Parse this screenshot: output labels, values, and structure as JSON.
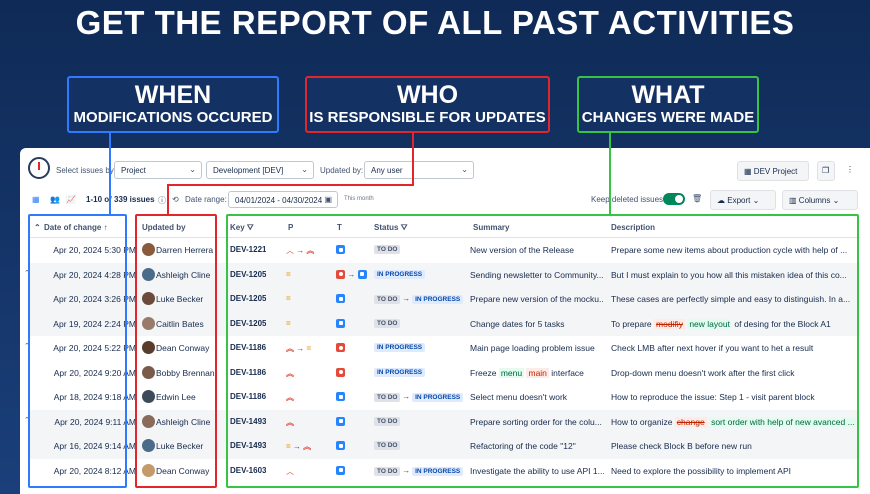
{
  "headline": "GET THE REPORT OF ALL PAST ACTIVITIES",
  "callouts": {
    "when": {
      "big": "WHEN",
      "small": "MODIFICATIONS OCCURED"
    },
    "who": {
      "big": "WHO",
      "small": "IS RESPONSIBLE FOR UPDATES"
    },
    "what": {
      "big": "WHAT",
      "small": "CHANGES WERE MADE"
    }
  },
  "toolbar": {
    "select_issues_label": "Select issues by:",
    "select_issues_value": "Project",
    "project_value": "Development [DEV]",
    "updated_by_label": "Updated by:",
    "updated_by_value": "Any user",
    "dev_project_button": "DEV Project",
    "pagination": "1-10",
    "of_label": "of",
    "total": "339",
    "issues_label": "issues",
    "date_range_label": "Date range:",
    "date_range_value": "04/01/2024 - 04/30/2024",
    "this_month": "This month",
    "keep_deleted_label": "Keep deleted issues",
    "keep_deleted_on": true,
    "export_button": "Export",
    "columns_button": "Columns"
  },
  "columns": {
    "date": "Date of change",
    "updated_by": "Updated by",
    "key": "Key",
    "priority": "P",
    "type": "T",
    "status": "Status",
    "summary": "Summary",
    "description": "Description"
  },
  "rows": [
    {
      "date": "Apr 20, 2024 5:30 PM",
      "user": "Darren Herrera",
      "key": "DEV-1221",
      "summary": "New version of the Release",
      "description": "Prepare some new items about production cycle with help of ..."
    },
    {
      "date": "Apr 20, 2024 4:28 PM",
      "user": "Ashleigh Cline",
      "key": "DEV-1205",
      "summary": "Sending newsletter to Community...",
      "description": "But I must explain to you how all this mistaken idea of this co..."
    },
    {
      "date": "Apr 20, 2024 3:26 PM",
      "user": "Luke Becker",
      "key": "DEV-1205",
      "summary": "Prepare new version of the mocku...",
      "description": "These cases are perfectly simple and easy to distinguish. In a..."
    },
    {
      "date": "Apr 19, 2024 2:24 PM",
      "user": "Caitlin Bates",
      "key": "DEV-1205",
      "summary": "Change dates for 5 tasks",
      "description_parts": [
        "To prepare",
        "modifiy",
        "new layout",
        "of desing for the Block A1"
      ]
    },
    {
      "date": "Apr 20, 2024 5:22 PM",
      "user": "Dean Conway",
      "key": "DEV-1186",
      "summary": "Main page loading problem issue",
      "description": "Check LMB after next hover if you want to het a result"
    },
    {
      "date": "Apr 20, 2024 9:20 AM",
      "user": "Bobby Brennan",
      "key": "DEV-1186",
      "summary_parts": [
        "Freeze",
        "menu",
        "main",
        "interface"
      ],
      "description": "Drop-down menu doesn't work after the first click"
    },
    {
      "date": "Apr 18, 2024 9:18 AM",
      "user": "Edwin Lee",
      "key": "DEV-1186",
      "summary": "Select menu doesn't work",
      "description": "How to reproduce the issue: Step 1 - visit parent block"
    },
    {
      "date": "Apr 20, 2024 9:11 AM",
      "user": "Ashleigh Cline",
      "key": "DEV-1493",
      "summary": "Prepare sorting order for the colu...",
      "description_parts": [
        "How to organize",
        "change",
        "sort order with help of new avanced ..."
      ]
    },
    {
      "date": "Apr 16, 2024 9:14 AM",
      "user": "Luke Becker",
      "key": "DEV-1493",
      "summary": "Refactoring of the code \"12\"",
      "description": "Please check Block B before new run"
    },
    {
      "date": "Apr 20, 2024 8:12 AM",
      "user": "Dean Conway",
      "key": "DEV-1603",
      "summary": "Investigate the ability to use API 1...",
      "description": "Need to explore the possibility to implement API"
    }
  ],
  "status": {
    "todo": "TO DO",
    "in_progress": "IN PROGRESS"
  },
  "colors": {
    "when": "#2f7bff",
    "who": "#e2262b",
    "what": "#36c346"
  }
}
